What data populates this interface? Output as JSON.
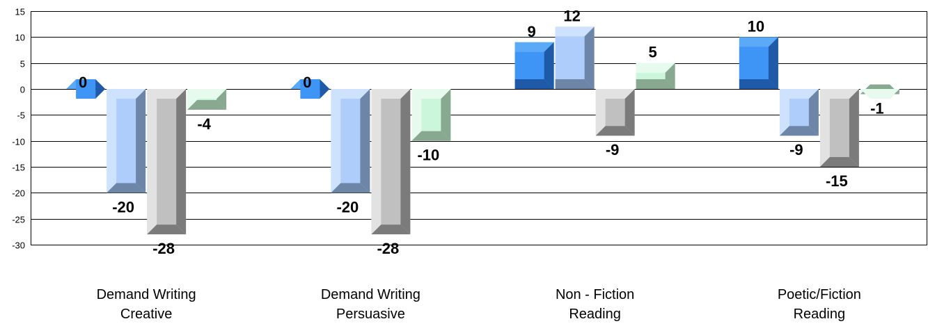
{
  "chart_data": {
    "type": "bar",
    "categories": [
      [
        "Demand Writing",
        "Creative"
      ],
      [
        "Demand Writing",
        "Persuasive"
      ],
      [
        "Non - Fiction",
        "Reading"
      ],
      [
        "Poetic/Fiction",
        "Reading"
      ]
    ],
    "series": [
      {
        "values": [
          0,
          0,
          9,
          10
        ],
        "colors": {
          "front": "#3f95f5",
          "top": "#5aaaf8",
          "side": "#1f5aa8"
        }
      },
      {
        "values": [
          -20,
          -20,
          12,
          -9
        ],
        "colors": {
          "front": "#aecdfb",
          "top": "#cfe2fd",
          "side": "#6d86a8"
        }
      },
      {
        "values": [
          -28,
          -28,
          -9,
          -15
        ],
        "colors": {
          "front": "#c0c0c0",
          "top": "#e2e2e2",
          "side": "#7b7b7b"
        }
      },
      {
        "values": [
          -4,
          -10,
          5,
          -1
        ],
        "colors": {
          "front": "#ccf6dc",
          "top": "#e6fbee",
          "side": "#88a890"
        }
      }
    ],
    "yticks": [
      15,
      10,
      5,
      0,
      -5,
      -10,
      -15,
      -20,
      -25,
      -30
    ],
    "ylim": [
      -30,
      15
    ],
    "grid": true,
    "legend": "none"
  }
}
